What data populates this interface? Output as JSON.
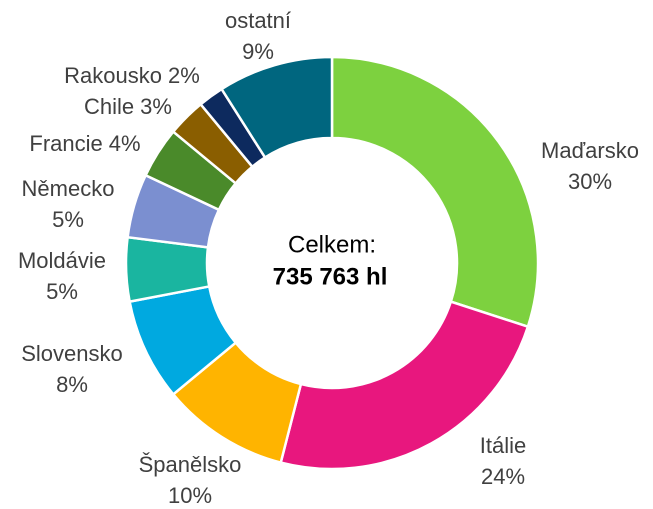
{
  "chart_data": {
    "type": "donut",
    "center_text": "Celkem:",
    "center_value": "735 763 hl",
    "categories": [
      "Maďarsko",
      "Itálie",
      "Španělsko",
      "Slovensko",
      "Moldávie",
      "Německo",
      "Francie",
      "Chile",
      "Rakousko",
      "ostatní"
    ],
    "values": [
      30,
      24,
      10,
      8,
      5,
      5,
      4,
      3,
      2,
      9
    ],
    "value_labels": [
      "30%",
      "24%",
      "10%",
      "8%",
      "5%",
      "5%",
      "4%",
      "3%",
      "2%",
      "9%"
    ],
    "colors": [
      "#7dd13f",
      "#e8177e",
      "#ffb400",
      "#00a9e0",
      "#1ab5a0",
      "#7b8fd0",
      "#4a8a2a",
      "#8a5e00",
      "#0d2a5e",
      "#00667f"
    ]
  }
}
